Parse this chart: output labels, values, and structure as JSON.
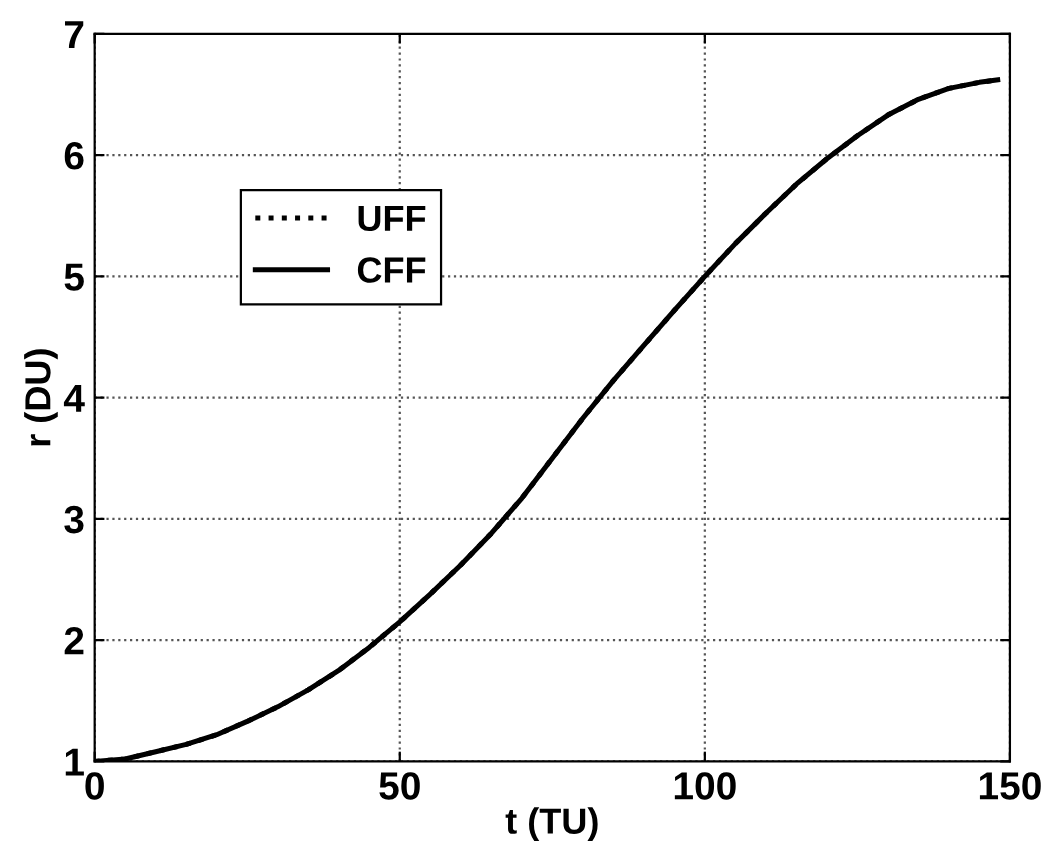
{
  "chart_data": {
    "type": "line",
    "xlabel": "t (TU)",
    "ylabel": "r (DU)",
    "x": [
      0,
      5,
      10,
      15,
      20,
      25,
      30,
      35,
      40,
      45,
      50,
      55,
      60,
      65,
      70,
      75,
      80,
      85,
      90,
      95,
      100,
      105,
      110,
      115,
      120,
      125,
      130,
      135,
      140,
      145,
      148
    ],
    "series": [
      {
        "name": "UFF",
        "color": "#000000",
        "line_style": "dotted",
        "values": [
          1.0,
          1.02,
          1.08,
          1.14,
          1.22,
          1.33,
          1.45,
          1.59,
          1.75,
          1.94,
          2.15,
          2.38,
          2.62,
          2.88,
          3.17,
          3.5,
          3.83,
          4.14,
          4.43,
          4.72,
          5.0,
          5.27,
          5.52,
          5.76,
          5.97,
          6.16,
          6.33,
          6.46,
          6.55,
          6.6,
          6.62
        ]
      },
      {
        "name": "CFF",
        "color": "#000000",
        "line_style": "solid",
        "values": [
          1.0,
          1.02,
          1.08,
          1.14,
          1.22,
          1.33,
          1.45,
          1.59,
          1.75,
          1.94,
          2.15,
          2.38,
          2.62,
          2.88,
          3.17,
          3.5,
          3.83,
          4.14,
          4.43,
          4.72,
          5.0,
          5.27,
          5.52,
          5.76,
          5.97,
          6.16,
          6.33,
          6.46,
          6.55,
          6.6,
          6.62
        ]
      }
    ],
    "xlim": [
      0,
      150
    ],
    "ylim": [
      1,
      7
    ],
    "xticks": [
      0,
      50,
      100,
      150
    ],
    "yticks": [
      1,
      2,
      3,
      4,
      5,
      6,
      7
    ],
    "grid": true,
    "legend": "top left",
    "marker": "none"
  }
}
